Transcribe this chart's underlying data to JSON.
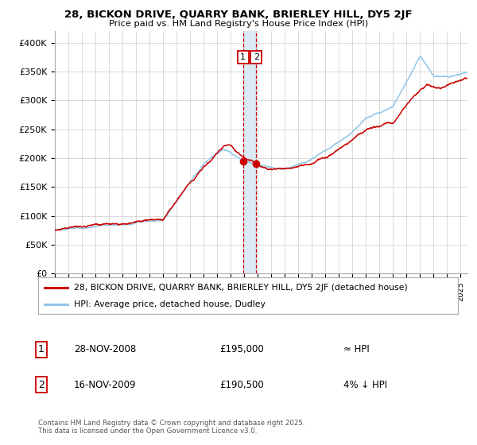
{
  "title": "28, BICKON DRIVE, QUARRY BANK, BRIERLEY HILL, DY5 2JF",
  "subtitle": "Price paid vs. HM Land Registry's House Price Index (HPI)",
  "legend_line1": "28, BICKON DRIVE, QUARRY BANK, BRIERLEY HILL, DY5 2JF (detached house)",
  "legend_line2": "HPI: Average price, detached house, Dudley",
  "footer": "Contains HM Land Registry data © Crown copyright and database right 2025.\nThis data is licensed under the Open Government Licence v3.0.",
  "transaction1_date": "28-NOV-2008",
  "transaction1_price": "£195,000",
  "transaction1_hpi": "≈ HPI",
  "transaction2_date": "16-NOV-2009",
  "transaction2_price": "£190,500",
  "transaction2_hpi": "4% ↓ HPI",
  "hpi_line_color": "#90c4e8",
  "price_line_color": "#cc0000",
  "dot_color": "#cc0000",
  "vline1_color": "#cc0000",
  "vline2_color": "#cc0000",
  "vband_color": "#daeaf5",
  "grid_color": "#cccccc",
  "bg_color": "#ffffff",
  "ylim": [
    0,
    420000
  ],
  "yticks": [
    0,
    50000,
    100000,
    150000,
    200000,
    250000,
    300000,
    350000,
    400000
  ],
  "xlim_start": 1995.0,
  "xlim_end": 2025.5,
  "transaction1_x": 2008.91,
  "transaction2_x": 2009.88,
  "transaction1_y": 195000,
  "transaction2_y": 190500
}
